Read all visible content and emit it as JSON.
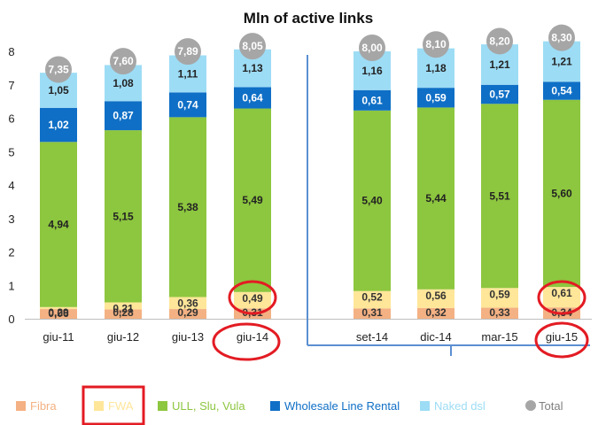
{
  "chart_data": {
    "type": "bar",
    "stacked": true,
    "title": "Mln of active links",
    "xlabel": "",
    "ylabel": "",
    "ylim": [
      0,
      8
    ],
    "yticks": [
      "0",
      "1",
      "2",
      "3",
      "4",
      "5",
      "6",
      "7",
      "8"
    ],
    "categories": [
      "giu-11",
      "giu-12",
      "giu-13",
      "giu-14",
      "set-14",
      "dic-14",
      "mar-15",
      "giu-15"
    ],
    "series": [
      {
        "name": "Fibra",
        "color": "#f4b183",
        "values": [
          0.29,
          0.28,
          0.29,
          0.31,
          0.31,
          0.32,
          0.33,
          0.34
        ],
        "labels": [
          "0,29",
          "0,28",
          "0,29",
          "0,31",
          "0,31",
          "0,32",
          "0,33",
          "0,34"
        ]
      },
      {
        "name": "FWA",
        "color": "#ffe699",
        "values": [
          0.06,
          0.21,
          0.36,
          0.49,
          0.52,
          0.56,
          0.59,
          0.61
        ],
        "labels": [
          "0,06",
          "0,21",
          "0,36",
          "0,49",
          "0,52",
          "0,56",
          "0,59",
          "0,61"
        ]
      },
      {
        "name": "ULL, Slu, Vula",
        "color": "#8dc63f",
        "values": [
          4.94,
          5.15,
          5.38,
          5.49,
          5.4,
          5.44,
          5.51,
          5.6
        ],
        "labels": [
          "4,94",
          "5,15",
          "5,38",
          "5,49",
          "5,40",
          "5,44",
          "5,51",
          "5,60"
        ]
      },
      {
        "name": "Wholesale Line Rental",
        "color": "#0f6fc6",
        "values": [
          1.02,
          0.87,
          0.74,
          0.64,
          0.61,
          0.59,
          0.57,
          0.54
        ],
        "labels": [
          "1,02",
          "0,87",
          "0,74",
          "0,64",
          "0,61",
          "0,59",
          "0,57",
          "0,54"
        ]
      },
      {
        "name": "Naked dsl",
        "color": "#9ddcf5",
        "values": [
          1.05,
          1.08,
          1.11,
          1.13,
          1.16,
          1.18,
          1.21,
          1.21
        ],
        "labels": [
          "1,05",
          "1,08",
          "1,11",
          "1,13",
          "1,16",
          "1,18",
          "1,21",
          "1,21"
        ]
      }
    ],
    "totals": {
      "name": "Total",
      "color": "#a6a6a6",
      "values": [
        7.35,
        7.6,
        7.89,
        8.05,
        8.0,
        8.1,
        8.2,
        8.3
      ],
      "labels": [
        "7,35",
        "7,60",
        "7,89",
        "8,05",
        "8,00",
        "8,10",
        "8,20",
        "8,30"
      ]
    },
    "legend_position": "bottom",
    "grid": false,
    "highlight_color": "#e31b23"
  }
}
